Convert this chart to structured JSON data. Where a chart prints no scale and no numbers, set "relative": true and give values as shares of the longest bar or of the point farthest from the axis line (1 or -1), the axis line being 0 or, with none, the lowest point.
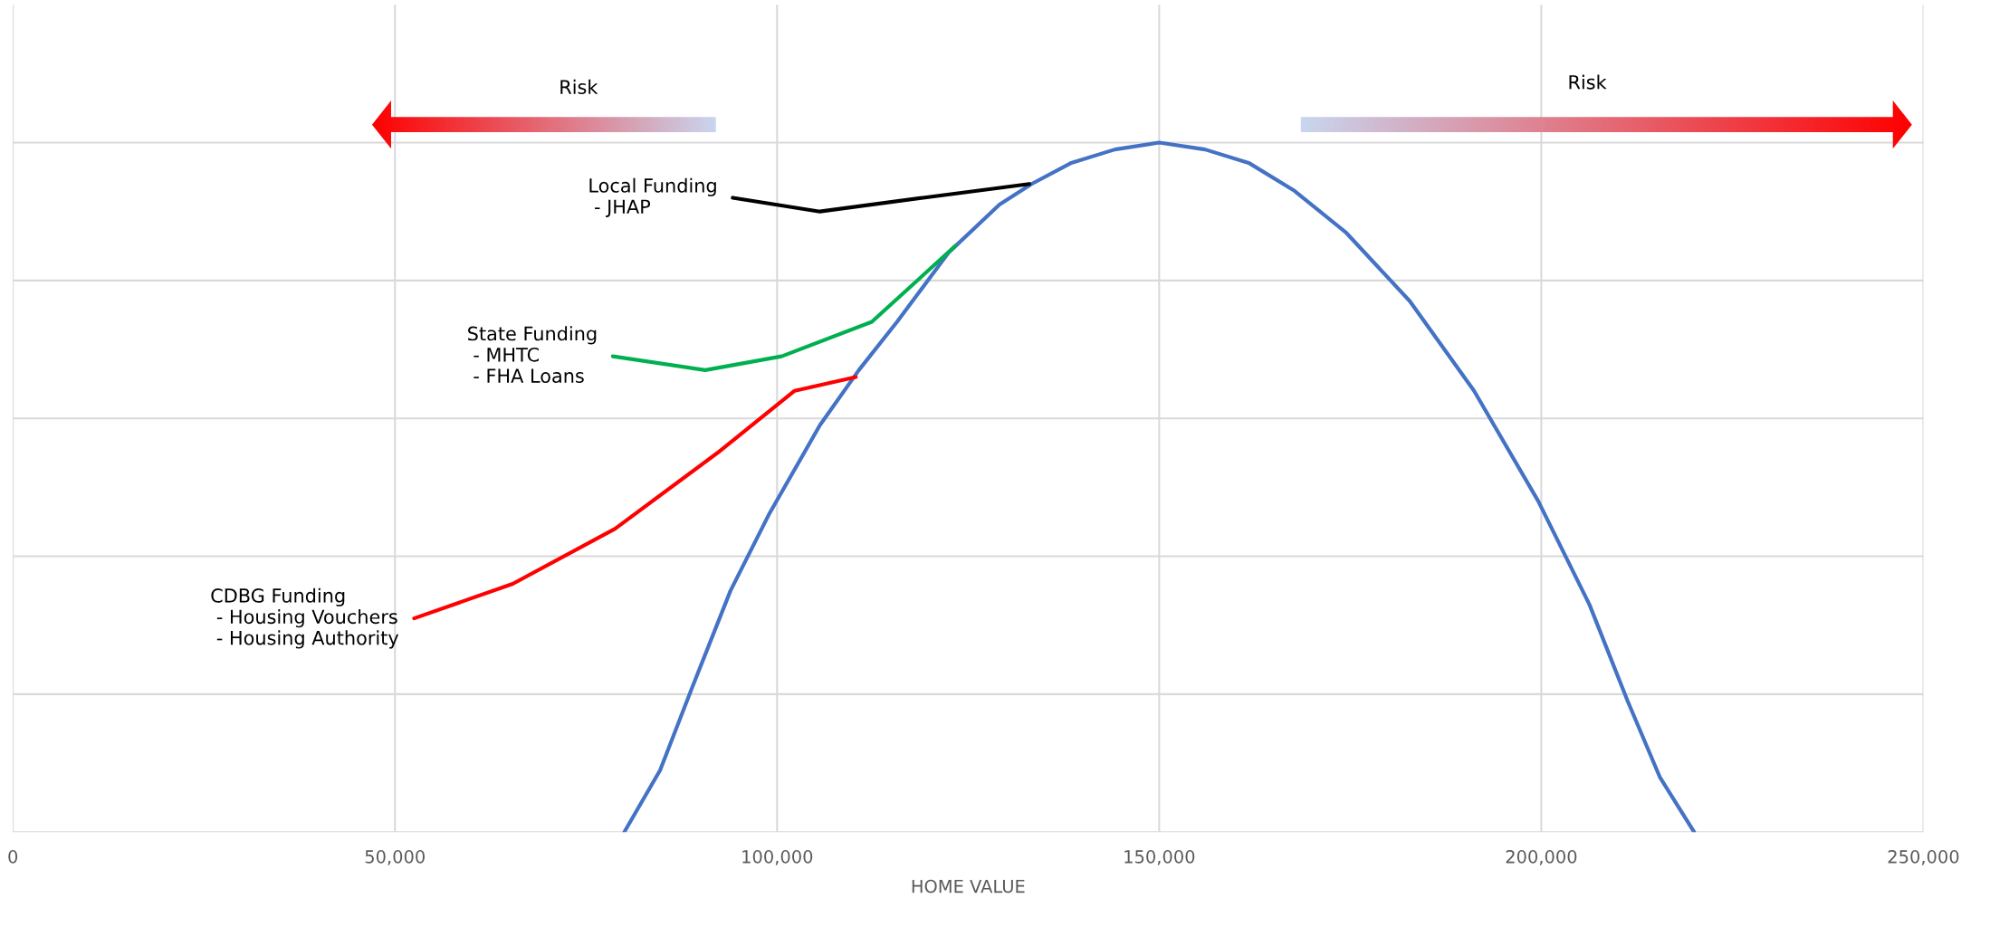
{
  "chart_data": {
    "type": "line",
    "relative": true,
    "xlabel": "HOME VALUE",
    "xlim": [
      0,
      250000
    ],
    "xticks": [
      0,
      {
        "value": 50000,
        "label": "50,000"
      },
      {
        "value": 100000,
        "label": "100,000"
      },
      {
        "value": 150000,
        "label": "150,000"
      },
      {
        "value": 200000,
        "label": "200,000"
      },
      {
        "value": 250000,
        "label": "250,000"
      }
    ],
    "grid": true,
    "tick_labels": "x",
    "legend": false,
    "marker": "none",
    "line_style": "solid",
    "series": [
      {
        "color": "#4472c4",
        "x": [
          80000,
          84700,
          88900,
          93900,
          98900,
          105600,
          110700,
          115700,
          122400,
          129100,
          133300,
          138400,
          144200,
          150000,
          156000,
          161800,
          167700,
          174400,
          182800,
          191200,
          199600,
          206300,
          211300,
          215500,
          220000
        ],
        "values": [
          0,
          0.09,
          0.21,
          0.35,
          0.46,
          0.59,
          0.67,
          0.74,
          0.84,
          0.91,
          0.94,
          0.97,
          0.99,
          1,
          0.99,
          0.97,
          0.93,
          0.87,
          0.77,
          0.64,
          0.48,
          0.33,
          0.19,
          0.08,
          0
        ]
      },
      {
        "color": "#ff0000",
        "x": [
          52500,
          65400,
          78800,
          92200,
          102300,
          110300
        ],
        "values": [
          0.31,
          0.36,
          0.44,
          0.55,
          0.64,
          0.66
        ]
      },
      {
        "color": "#00b050",
        "x": [
          78500,
          90600,
          100600,
          112400,
          123300
        ],
        "values": [
          0.69,
          0.67,
          0.69,
          0.74,
          0.85
        ]
      },
      {
        "color": "#000000",
        "x": [
          94200,
          105600,
          119100,
          133000
        ],
        "values": [
          0.92,
          0.9,
          0.92,
          0.94
        ]
      }
    ],
    "annotations": [
      {
        "text": "Local Funding\n - JHAP",
        "x": 94200,
        "y": 0.92
      },
      {
        "text": "State Funding\n - MHTC\n - FHA Loans",
        "x": 78500,
        "y": 0.69
      },
      {
        "text": "CDBG Funding\n - Housing Vouchers\n - Housing Authority",
        "x": 52500,
        "y": 0.31
      },
      "Risk",
      "Risk"
    ]
  }
}
